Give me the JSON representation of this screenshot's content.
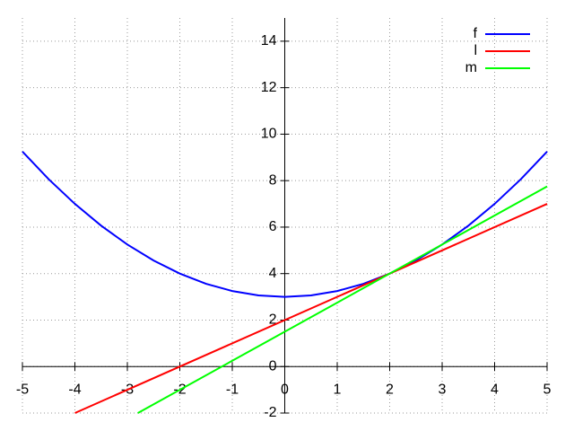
{
  "chart_data": {
    "type": "line",
    "xlim": [
      -5,
      5
    ],
    "ylim": [
      -2,
      15
    ],
    "xticks": [
      -5,
      -4,
      -3,
      -2,
      -1,
      0,
      1,
      2,
      3,
      4,
      5
    ],
    "yticks": [
      -2,
      0,
      2,
      4,
      6,
      8,
      10,
      12,
      14
    ],
    "grid": true,
    "legend": "top right",
    "series": [
      {
        "name": "f",
        "color": "#0000ff",
        "x": [
          -5,
          -4.5,
          -4,
          -3.5,
          -3,
          -2.5,
          -2,
          -1.5,
          -1,
          -0.5,
          0,
          0.5,
          1,
          1.5,
          2,
          2.5,
          3,
          3.5,
          4,
          4.5,
          5
        ],
        "values": [
          9.25,
          8.0625,
          7,
          6.0625,
          5.25,
          4.5625,
          4,
          3.5625,
          3.25,
          3.0625,
          3,
          3.0625,
          3.25,
          3.5625,
          4,
          4.5625,
          5.25,
          6.0625,
          7,
          8.0625,
          9.25
        ]
      },
      {
        "name": "l",
        "color": "#ff0000",
        "x": [
          -4,
          5
        ],
        "values": [
          -2,
          7
        ]
      },
      {
        "name": "m",
        "color": "#00ff00",
        "x": [
          -2.8,
          5
        ],
        "values": [
          -2,
          7.75
        ]
      }
    ]
  }
}
